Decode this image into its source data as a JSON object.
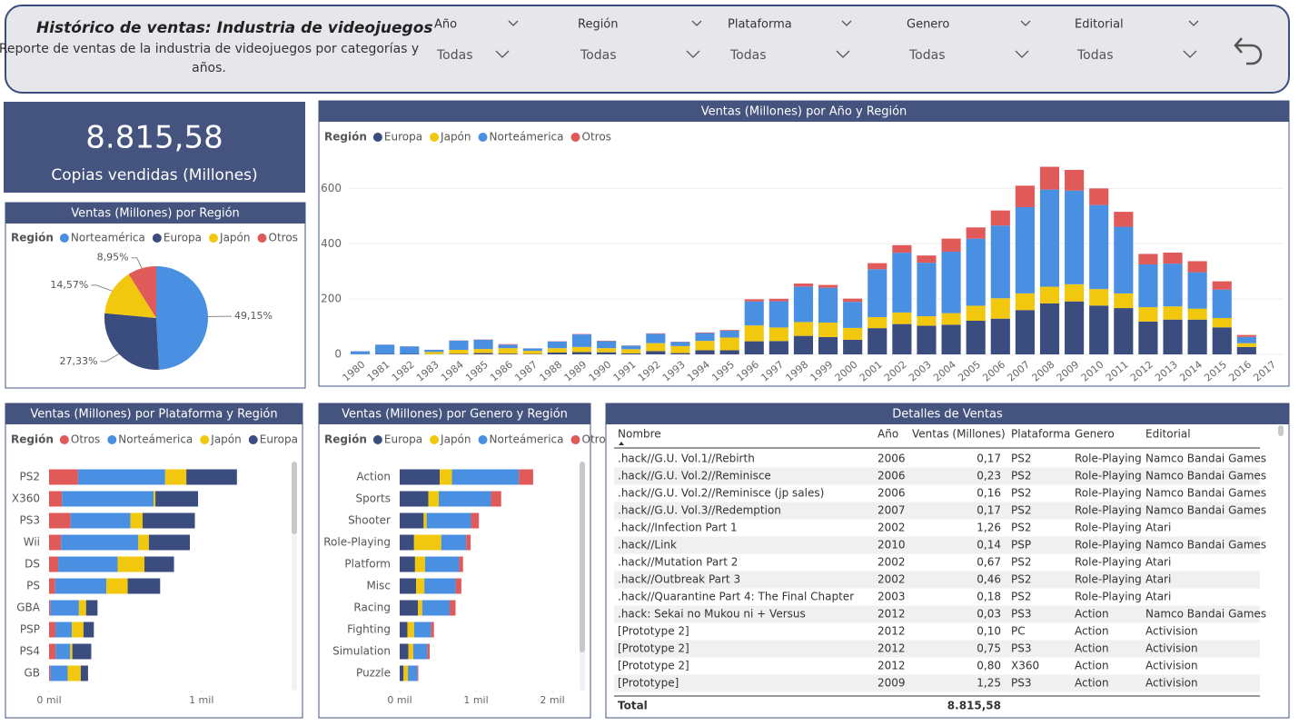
{
  "header": {
    "title": "Histórico de ventas: Industria de videojuegos",
    "subtitle_lines": [
      "Reporte de ventas de la industria de videojuegos por categorías y",
      "años."
    ]
  },
  "filters": [
    {
      "label": "Año",
      "value": "Todas"
    },
    {
      "label": "Región",
      "value": "Todas"
    },
    {
      "label": "Plataforma",
      "value": "Todas"
    },
    {
      "label": "Genero",
      "value": "Todas"
    },
    {
      "label": "Editorial",
      "value": "Todas"
    }
  ],
  "kpi": {
    "value": "8.815,58",
    "label": "Copias vendidas (Millones)"
  },
  "chart_data": [
    {
      "type": "pie",
      "title": "Ventas (Millones) por Región",
      "legend_title": "Región",
      "categories": [
        "Norteamérica",
        "Europa",
        "Japón",
        "Otros"
      ],
      "values": [
        49.15,
        27.33,
        14.57,
        8.95
      ],
      "value_labels": [
        "49,15%",
        "27,33%",
        "14,57%",
        "8,95%"
      ],
      "colors": [
        "#4a90e2",
        "#3b4d7e",
        "#f2c80f",
        "#e05a5a"
      ]
    },
    {
      "type": "stacked-bar",
      "title": "Ventas (Millones) por Año y Región",
      "legend_title": "Región",
      "categories": [
        "1980",
        "1981",
        "1982",
        "1983",
        "1984",
        "1985",
        "1986",
        "1987",
        "1988",
        "1989",
        "1990",
        "1991",
        "1992",
        "1993",
        "1994",
        "1995",
        "1996",
        "1997",
        "1998",
        "1999",
        "2000",
        "2001",
        "2002",
        "2003",
        "2004",
        "2005",
        "2006",
        "2007",
        "2008",
        "2009",
        "2010",
        "2011",
        "2012",
        "2013",
        "2014",
        "2015",
        "2016",
        "2017"
      ],
      "series": [
        {
          "name": "Europa",
          "color": "#3b4d7e",
          "values": [
            0.7,
            2,
            1.7,
            0.8,
            2.1,
            4.7,
            2.8,
            1.4,
            6.6,
            8.4,
            7.6,
            3.9,
            11.7,
            4.7,
            14.9,
            14.9,
            47.3,
            48.3,
            66.9,
            62.7,
            52.8,
            94.9,
            109.7,
            103.8,
            107.3,
            121.6,
            129.2,
            160.2,
            184.4,
            191.6,
            176.6,
            167.4,
            118.8,
            125.8,
            125.7,
            97.7,
            26.8,
            0
          ]
        },
        {
          "name": "Japón",
          "color": "#f2c80f",
          "values": [
            0,
            0,
            0,
            8,
            14.3,
            14.6,
            19.8,
            11.6,
            15.8,
            18.4,
            14.9,
            14.8,
            28.9,
            25.3,
            33.9,
            45.8,
            57.4,
            48.9,
            50,
            52.3,
            42.8,
            39.9,
            41.8,
            34.2,
            41.7,
            54.3,
            73.7,
            60.3,
            60.3,
            61.9,
            59.5,
            53,
            51.8,
            47.6,
            39.5,
            33.7,
            13.7,
            0.05
          ]
        },
        {
          "name": "Norteámerica",
          "color": "#4a90e2",
          "values": [
            10.6,
            33,
            27,
            7.8,
            33.3,
            33.7,
            12.5,
            8.5,
            23.9,
            45.2,
            25.5,
            12.8,
            33.9,
            15.1,
            28.2,
            24.8,
            86.8,
            94.8,
            128.4,
            126.1,
            94.5,
            173.1,
            216.2,
            193.6,
            222.4,
            242.6,
            263.1,
            312,
            351.4,
            338.9,
            304.2,
            241.2,
            154.9,
            154.8,
            131.9,
            102.8,
            22.7,
            0
          ]
        },
        {
          "name": "Otros",
          "color": "#e05a5a",
          "values": [
            0.1,
            0.3,
            0.3,
            0.1,
            0.7,
            0.9,
            1.9,
            0.2,
            1,
            1.5,
            1.4,
            0.7,
            1.7,
            0.9,
            2.2,
            2.6,
            7.7,
            9.1,
            11,
            10,
            11.6,
            22,
            27.3,
            26,
            47.3,
            40.6,
            54.4,
            77.6,
            82.4,
            74.8,
            59.9,
            54,
            37.8,
            39.8,
            40,
            30,
            7,
            0
          ]
        }
      ],
      "ylim": [
        0,
        700
      ],
      "yticks": [
        0,
        200,
        400,
        600
      ],
      "grid": true
    },
    {
      "type": "stacked-hbar",
      "title": "Ventas (Millones) por Plataforma y Región",
      "legend_title": "Región",
      "categories": [
        "PS2",
        "X360",
        "PS3",
        "Wii",
        "DS",
        "PS",
        "GBA",
        "PSP",
        "PS4",
        "GB"
      ],
      "series": [
        {
          "name": "Otros",
          "color": "#e05a5a",
          "values": [
            190,
            85,
            141,
            79,
            60,
            40,
            8,
            42,
            43,
            8
          ]
        },
        {
          "name": "Norteámerica",
          "color": "#4a90e2",
          "values": [
            572,
            601,
            393,
            507,
            390,
            336,
            188,
            108,
            96,
            114
          ]
        },
        {
          "name": "Japón",
          "color": "#f2c80f",
          "values": [
            139,
            12,
            80,
            69,
            176,
            140,
            47,
            76,
            14,
            86
          ]
        },
        {
          "name": "Europa",
          "color": "#3b4d7e",
          "values": [
            332,
            280,
            343,
            269,
            194,
            213,
            75,
            68,
            124,
            48
          ]
        }
      ],
      "xlim": [
        0,
        1550
      ],
      "xticks": [
        {
          "value": 0,
          "label": "0 mil"
        },
        {
          "value": 1000,
          "label": "1 mil"
        }
      ]
    },
    {
      "type": "stacked-hbar",
      "title": "Ventas (Millones) por Genero y Región",
      "legend_title": "Región",
      "categories": [
        "Action",
        "Sports",
        "Shooter",
        "Role-Playing",
        "Platform",
        "Misc",
        "Racing",
        "Fighting",
        "Simulation",
        "Puzzle"
      ],
      "series": [
        {
          "name": "Europa",
          "color": "#3b4d7e",
          "values": [
            525,
            376,
            314,
            188,
            201,
            216,
            238,
            101,
            114,
            51
          ]
        },
        {
          "name": "Japón",
          "color": "#f2c80f",
          "values": [
            160,
            136,
            39,
            356,
            131,
            107,
            57,
            88,
            64,
            57
          ]
        },
        {
          "name": "Norteámerica",
          "color": "#4a90e2",
          "values": [
            877,
            684,
            582,
            327,
            447,
            410,
            360,
            223,
            183,
            123
          ]
        },
        {
          "name": "Otros",
          "color": "#e05a5a",
          "values": [
            187,
            134,
            103,
            59,
            51,
            75,
            77,
            37,
            32,
            13
          ]
        }
      ],
      "xlim": [
        0,
        2250
      ],
      "xticks": [
        {
          "value": 0,
          "label": "0 mil"
        },
        {
          "value": 1000,
          "label": "1 mil"
        },
        {
          "value": 2000,
          "label": "2 mil"
        }
      ]
    }
  ],
  "table": {
    "title": "Detalles de Ventas",
    "columns": [
      "Nombre",
      "Año",
      "Ventas (Millones)",
      "Plataforma",
      "Genero",
      "Editorial"
    ],
    "rows": [
      [
        ".hack//G.U. Vol.1//Rebirth",
        "2006",
        "0,17",
        "PS2",
        "Role-Playing",
        "Namco Bandai Games"
      ],
      [
        ".hack//G.U. Vol.2//Reminisce",
        "2006",
        "0,23",
        "PS2",
        "Role-Playing",
        "Namco Bandai Games"
      ],
      [
        ".hack//G.U. Vol.2//Reminisce (jp sales)",
        "2006",
        "0,16",
        "PS2",
        "Role-Playing",
        "Namco Bandai Games"
      ],
      [
        ".hack//G.U. Vol.3//Redemption",
        "2007",
        "0,17",
        "PS2",
        "Role-Playing",
        "Namco Bandai Games"
      ],
      [
        ".hack//Infection Part 1",
        "2002",
        "1,26",
        "PS2",
        "Role-Playing",
        "Atari"
      ],
      [
        ".hack//Link",
        "2010",
        "0,14",
        "PSP",
        "Role-Playing",
        "Namco Bandai Games"
      ],
      [
        ".hack//Mutation Part 2",
        "2002",
        "0,67",
        "PS2",
        "Role-Playing",
        "Atari"
      ],
      [
        ".hack//Outbreak Part 3",
        "2002",
        "0,46",
        "PS2",
        "Role-Playing",
        "Atari"
      ],
      [
        ".hack//Quarantine Part 4: The Final Chapter",
        "2003",
        "0,18",
        "PS2",
        "Role-Playing",
        "Atari"
      ],
      [
        ".hack: Sekai no Mukou ni + Versus",
        "2012",
        "0,03",
        "PS3",
        "Action",
        "Namco Bandai Games"
      ],
      [
        "[Prototype 2]",
        "2012",
        "0,10",
        "PC",
        "Action",
        "Activision"
      ],
      [
        "[Prototype 2]",
        "2012",
        "0,75",
        "PS3",
        "Action",
        "Activision"
      ],
      [
        "[Prototype 2]",
        "2012",
        "0,80",
        "X360",
        "Action",
        "Activision"
      ],
      [
        "[Prototype]",
        "2009",
        "1,25",
        "PS3",
        "Action",
        "Activision"
      ]
    ],
    "total": {
      "label": "Total",
      "value": "8.815,58"
    }
  }
}
